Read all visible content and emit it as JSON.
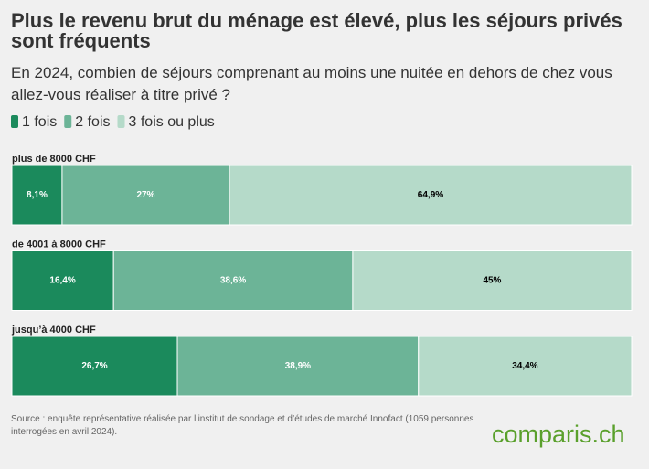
{
  "chart_data": {
    "type": "stacked-bar-horizontal",
    "title": "Plus le revenu brut du ménage est élevé, plus les séjours privés sont fréquents",
    "subtitle": "En 2024, combien de séjours comprenant au moins une nuitée en dehors de chez vous allez-vous réaliser à titre privé ?",
    "categories": [
      "plus de 8000 CHF",
      "de 4001 à 8000 CHF",
      "jusqu’à 4000 CHF"
    ],
    "xlim": [
      0,
      100
    ],
    "series": [
      {
        "name": "1 fois",
        "color": "#1b8a5c",
        "values": [
          8.1,
          16.4,
          26.7
        ],
        "value_labels": [
          "8,1%",
          "16,4%",
          "26,7%"
        ]
      },
      {
        "name": "2 fois",
        "color": "#6cb497",
        "values": [
          27,
          38.6,
          38.9
        ],
        "value_labels": [
          "27%",
          "38,6%",
          "38,9%"
        ]
      },
      {
        "name": "3 fois ou plus",
        "color": "#b5dac9",
        "values": [
          64.9,
          45,
          34.4
        ],
        "value_labels": [
          "64,9%",
          "45%",
          "34,4%"
        ]
      }
    ],
    "source": "Source : enquête représentative réalisée par l’institut de sondage et d’études de marché Innofact (1059 personnes interrogées en avril 2024).",
    "logo": "comparis.ch"
  }
}
